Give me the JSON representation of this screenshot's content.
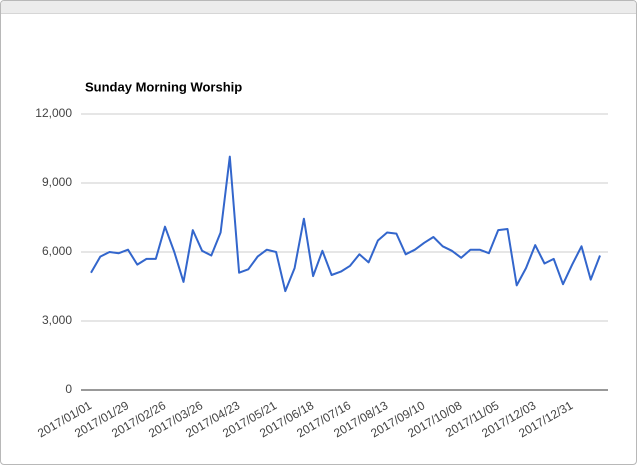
{
  "chart_data": {
    "type": "line",
    "title": "Sunday Morning Worship",
    "categories": [
      "2017/01/01",
      null,
      null,
      null,
      "2017/01/29",
      null,
      null,
      null,
      "2017/02/26",
      null,
      null,
      null,
      "2017/03/26",
      null,
      null,
      null,
      "2017/04/23",
      null,
      null,
      null,
      "2017/05/21",
      null,
      null,
      null,
      "2017/06/18",
      null,
      null,
      null,
      "2017/07/16",
      null,
      null,
      null,
      "2017/08/13",
      null,
      null,
      null,
      "2017/09/10",
      null,
      null,
      null,
      "2017/10/08",
      null,
      null,
      null,
      "2017/11/05",
      null,
      null,
      null,
      "2017/12/03",
      null,
      null,
      null,
      "2017/12/31",
      null,
      null,
      null
    ],
    "values": [
      5100,
      5800,
      6000,
      5950,
      6100,
      5450,
      5700,
      5700,
      7100,
      6000,
      4700,
      6950,
      6050,
      5850,
      6850,
      10150,
      5100,
      5250,
      5800,
      6100,
      6000,
      4300,
      5300,
      7450,
      4950,
      6050,
      5000,
      5150,
      5400,
      5900,
      5550,
      6500,
      6850,
      6800,
      5900,
      6100,
      6400,
      6650,
      6250,
      6050,
      5750,
      6100,
      6100,
      5950,
      6950,
      7000,
      4550,
      5300,
      6300,
      5500,
      5700,
      4600,
      5450,
      6250,
      4800,
      5850
    ],
    "color": "#3366cc",
    "ylim": [
      0,
      12000
    ],
    "yticks": [
      0,
      {
        "value": 3000,
        "label": "3,000"
      },
      {
        "value": 6000,
        "label": "6,000"
      },
      {
        "value": 9000,
        "label": "9,000"
      },
      {
        "value": 12000,
        "label": "12,000"
      }
    ],
    "grid": true
  }
}
